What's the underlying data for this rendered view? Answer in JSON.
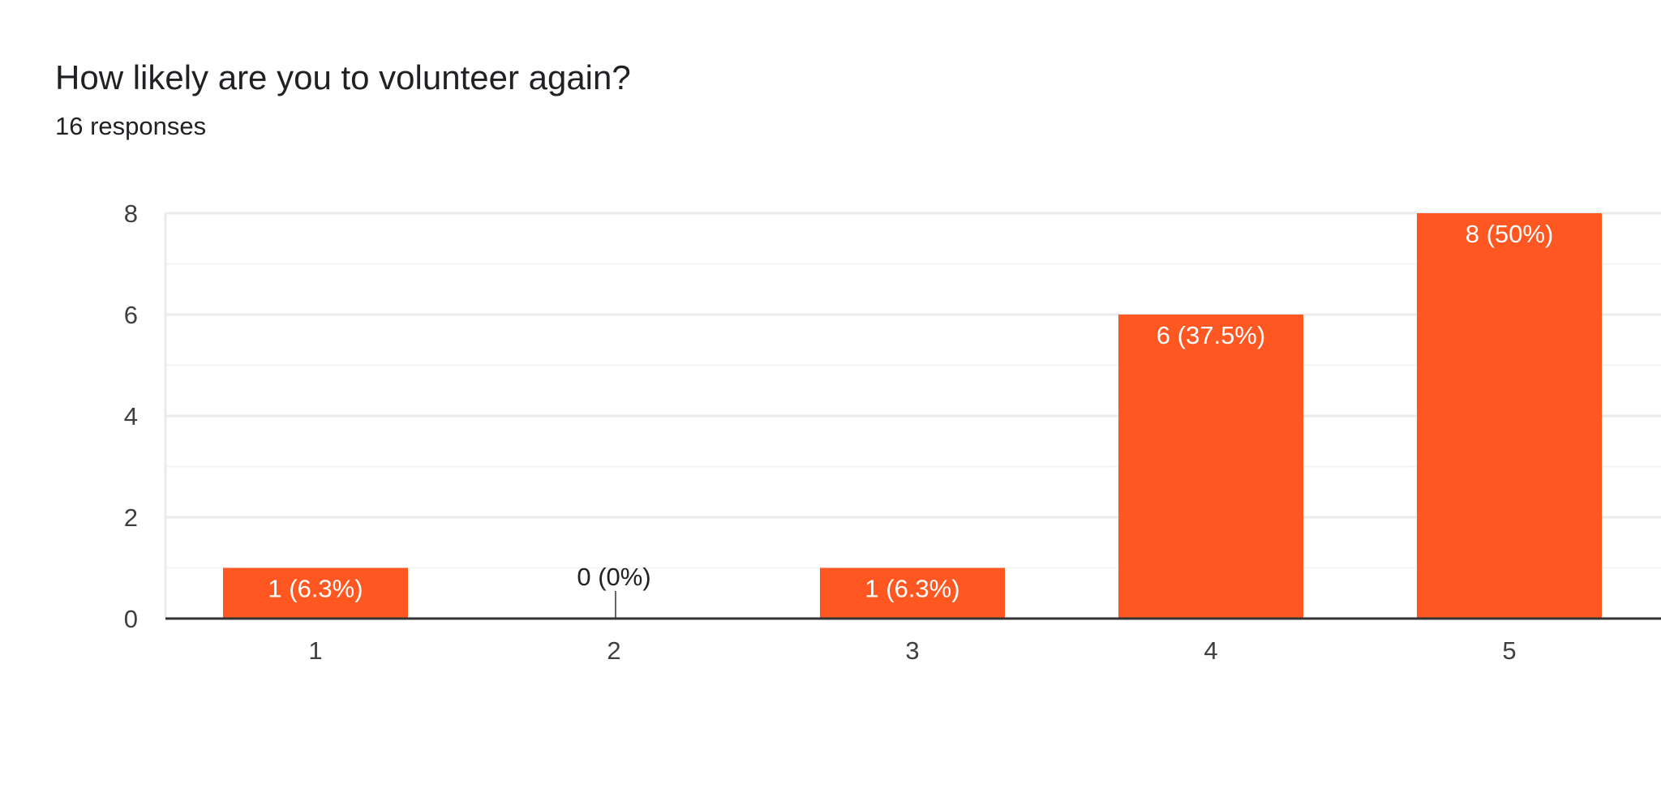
{
  "header": {
    "title": "How likely are you to volunteer again?",
    "subtitle": "16 responses"
  },
  "colors": {
    "bar": "#ff5722",
    "grid": "#ebebeb",
    "minor_grid": "#f4f4f4",
    "axis": "#333333",
    "inside_label": "#ffffff",
    "outside_label": "#202124"
  },
  "chart_data": {
    "type": "bar",
    "title": "How likely are you to volunteer again?",
    "subtitle": "16 responses",
    "categories": [
      "1",
      "2",
      "3",
      "4",
      "5"
    ],
    "values": [
      1,
      0,
      1,
      6,
      8
    ],
    "data_labels": [
      "1 (6.3%)",
      "0 (0%)",
      "1 (6.3%)",
      "6 (37.5%)",
      "8 (50%)"
    ],
    "ylim": [
      0,
      8
    ],
    "yticks": [
      0,
      2,
      4,
      6,
      8
    ],
    "grid": true,
    "xlabel": "",
    "ylabel": ""
  }
}
